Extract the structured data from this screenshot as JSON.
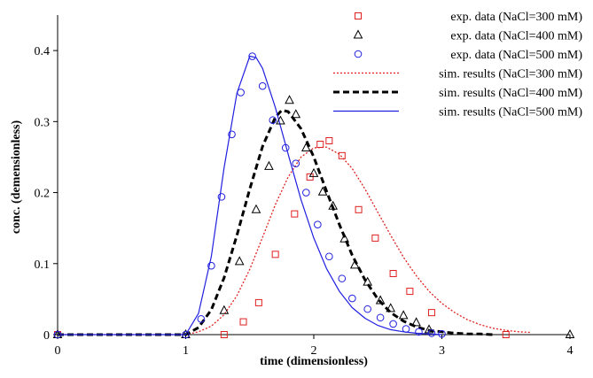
{
  "chart_data": {
    "type": "scatter",
    "title": "",
    "xlabel": "time (dimensionless)",
    "ylabel": "conc. (demensionless)",
    "xlim": [
      0,
      4
    ],
    "ylim": [
      0,
      0.45
    ],
    "x_ticks": [
      "0",
      "1",
      "2",
      "3",
      "4"
    ],
    "y_ticks": [
      "0",
      "0.1",
      "0.2",
      "0.3",
      "0.4"
    ],
    "x_tick_values": [
      0,
      1,
      2,
      3,
      4
    ],
    "y_tick_values": [
      0,
      0.1,
      0.2,
      0.3,
      0.4
    ],
    "grid": false,
    "legend_position": "top-right",
    "series": [
      {
        "name": "exp. data (NaCl=300 mM)",
        "kind": "markers",
        "marker": "square",
        "color": "#e02020",
        "x": [
          0.0,
          1.3,
          1.45,
          1.57,
          1.7,
          1.85,
          1.97,
          2.05,
          2.12,
          2.22,
          2.35,
          2.48,
          2.62,
          2.75,
          2.92,
          3.5
        ],
        "y": [
          0.0,
          0.0,
          0.018,
          0.045,
          0.113,
          0.17,
          0.222,
          0.268,
          0.273,
          0.252,
          0.176,
          0.136,
          0.086,
          0.061,
          0.031,
          0.0
        ]
      },
      {
        "name": "exp. data (NaCl=400 mM)",
        "kind": "markers",
        "marker": "triangle",
        "color": "#000000",
        "x": [
          0.0,
          1.0,
          1.3,
          1.42,
          1.55,
          1.65,
          1.74,
          1.81,
          1.86,
          1.94,
          2.0,
          2.07,
          2.15,
          2.24,
          2.32,
          2.42,
          2.52,
          2.6,
          2.7,
          2.8,
          2.9,
          4.0
        ],
        "y": [
          0.0,
          0.0,
          0.034,
          0.103,
          0.176,
          0.237,
          0.301,
          0.33,
          0.31,
          0.263,
          0.227,
          0.201,
          0.181,
          0.135,
          0.098,
          0.074,
          0.048,
          0.037,
          0.027,
          0.017,
          0.007,
          0.0
        ]
      },
      {
        "name": "exp. data (NaCl=500 mM)",
        "kind": "markers",
        "marker": "circle",
        "color": "#2020e0",
        "x": [
          0.0,
          1.0,
          1.12,
          1.2,
          1.28,
          1.36,
          1.43,
          1.52,
          1.6,
          1.68,
          1.78,
          1.86,
          1.94,
          2.03,
          2.12,
          2.22,
          2.3,
          2.42,
          2.52,
          2.62,
          2.72,
          2.82,
          2.92,
          3.0
        ],
        "y": [
          0.0,
          0.0,
          0.022,
          0.097,
          0.194,
          0.282,
          0.341,
          0.392,
          0.35,
          0.302,
          0.263,
          0.241,
          0.2,
          0.155,
          0.11,
          0.079,
          0.051,
          0.036,
          0.024,
          0.015,
          0.008,
          0.004,
          0.002,
          0.001
        ]
      },
      {
        "name": "sim. results (NaCl=300 mM)",
        "kind": "line",
        "dash": "dotted",
        "color": "#e02020",
        "x": [
          0,
          1.0,
          1.1,
          1.2,
          1.3,
          1.4,
          1.5,
          1.6,
          1.7,
          1.8,
          1.9,
          2.0,
          2.1,
          2.2,
          2.3,
          2.4,
          2.5,
          2.6,
          2.7,
          2.8,
          2.9,
          3.0,
          3.1,
          3.2,
          3.3,
          3.4,
          3.5,
          3.6,
          3.7
        ],
        "y": [
          0,
          0,
          0.004,
          0.012,
          0.028,
          0.055,
          0.092,
          0.137,
          0.183,
          0.222,
          0.25,
          0.263,
          0.264,
          0.254,
          0.234,
          0.205,
          0.172,
          0.14,
          0.109,
          0.083,
          0.061,
          0.044,
          0.031,
          0.021,
          0.014,
          0.009,
          0.006,
          0.004,
          0.003
        ]
      },
      {
        "name": "sim. results (NaCl=400 mM)",
        "kind": "line",
        "dash": "dashed",
        "color": "#000000",
        "x": [
          0,
          1.0,
          1.1,
          1.2,
          1.3,
          1.4,
          1.5,
          1.6,
          1.7,
          1.75,
          1.8,
          1.9,
          2.0,
          2.1,
          2.2,
          2.3,
          2.4,
          2.5,
          2.6,
          2.7,
          2.8,
          2.9,
          3.0,
          3.1,
          3.2,
          3.3,
          3.4
        ],
        "y": [
          0,
          0,
          0.01,
          0.035,
          0.08,
          0.14,
          0.205,
          0.265,
          0.306,
          0.316,
          0.314,
          0.29,
          0.25,
          0.202,
          0.155,
          0.112,
          0.077,
          0.05,
          0.031,
          0.019,
          0.011,
          0.006,
          0.004,
          0.002,
          0.001,
          0.001,
          0.0
        ]
      },
      {
        "name": "sim. results (NaCl=500 mM)",
        "kind": "line",
        "dash": "solid",
        "color": "#2020e0",
        "x": [
          0,
          1.0,
          1.1,
          1.2,
          1.3,
          1.4,
          1.5,
          1.55,
          1.6,
          1.7,
          1.8,
          1.9,
          2.0,
          2.1,
          2.2,
          2.3,
          2.4,
          2.5,
          2.6,
          2.7,
          2.8,
          2.9,
          3.0
        ],
        "y": [
          0,
          0,
          0.03,
          0.11,
          0.235,
          0.34,
          0.392,
          0.39,
          0.375,
          0.32,
          0.254,
          0.19,
          0.136,
          0.093,
          0.061,
          0.038,
          0.023,
          0.013,
          0.007,
          0.004,
          0.002,
          0.001,
          0.0
        ]
      }
    ]
  }
}
